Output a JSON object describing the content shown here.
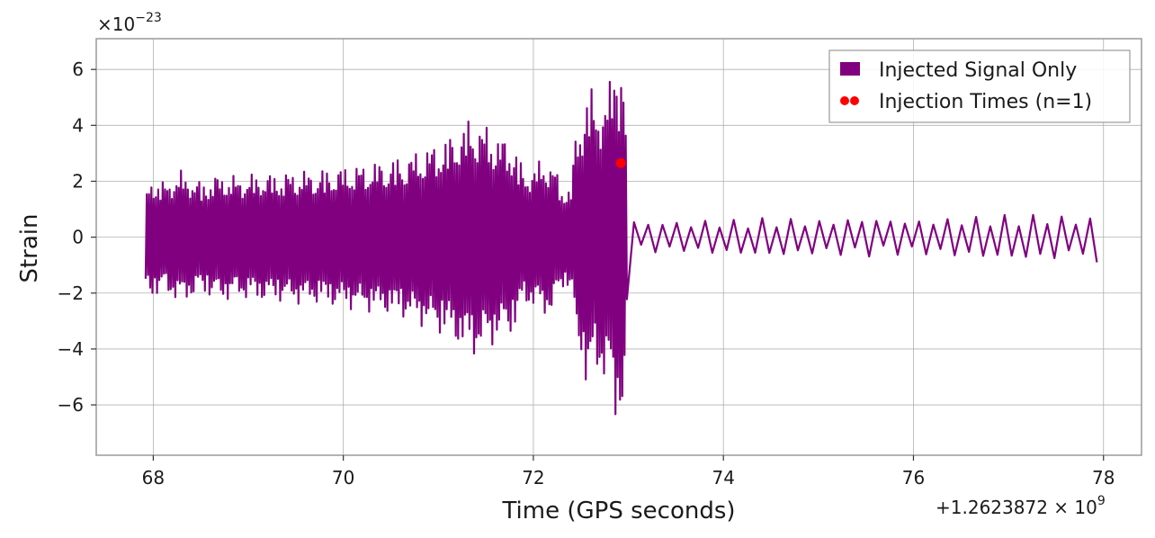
{
  "chart_data": {
    "type": "line",
    "title": "",
    "xlabel": "Time (GPS seconds)",
    "ylabel": "Strain",
    "x_offset_label": "+1.2623872 × 10",
    "x_offset_exponent": "9",
    "y_scale_label": "×10",
    "y_scale_exponent": "−23",
    "xlim": [
      67.4,
      78.4
    ],
    "ylim": [
      -7.8,
      7.1
    ],
    "x_ticks": [
      68,
      70,
      72,
      74,
      76,
      78
    ],
    "x_tick_labels": [
      "68",
      "70",
      "72",
      "74",
      "76",
      "78"
    ],
    "y_ticks": [
      6,
      4,
      2,
      0,
      -2,
      -4,
      -6
    ],
    "y_tick_labels": [
      "6",
      "4",
      "2",
      "0",
      "−2",
      "−4",
      "−6"
    ],
    "grid": true,
    "legend_position": "top-right",
    "series": [
      {
        "name": "Injected Signal Only",
        "kind": "line",
        "color": "#800080",
        "x": [
          67.92,
          67.93,
          67.95,
          68.1,
          68.3,
          68.5,
          68.7,
          68.9,
          69.1,
          69.3,
          69.5,
          69.7,
          69.9,
          70.1,
          70.3,
          70.5,
          70.7,
          70.9,
          71.1,
          71.3,
          71.4,
          71.6,
          71.8,
          71.9,
          72.0,
          72.1,
          72.2,
          72.3,
          72.4,
          72.45,
          72.5,
          72.55,
          72.6,
          72.65,
          72.7,
          72.75,
          72.8,
          72.85,
          72.88,
          72.9,
          72.92,
          72.94,
          72.96,
          72.98,
          73.0,
          73.2,
          73.4,
          73.6,
          73.8,
          74.0,
          74.5,
          75.0,
          75.5,
          76.0,
          76.5,
          77.0,
          77.5,
          77.8,
          77.9,
          77.93
        ],
        "y": [
          -2.4,
          1.6,
          -2.2,
          2.0,
          -2.4,
          2.0,
          -2.3,
          2.2,
          -2.3,
          2.3,
          -2.4,
          2.4,
          -2.5,
          2.6,
          -2.7,
          2.8,
          -3.0,
          3.3,
          -3.6,
          4.2,
          -4.3,
          3.8,
          -3.4,
          2.4,
          -2.6,
          2.8,
          -2.8,
          1.8,
          -1.9,
          4.0,
          -4.2,
          5.4,
          -5.5,
          4.9,
          -5.0,
          5.3,
          -5.5,
          6.3,
          -7.1,
          6.0,
          -6.8,
          6.4,
          -6.5,
          2.6,
          0.7,
          -0.5,
          0.6,
          -0.5,
          0.6,
          -0.6,
          0.7,
          -0.6,
          0.7,
          -0.6,
          0.7,
          -0.8,
          0.8,
          -0.6,
          0.8,
          -0.9
        ]
      },
      {
        "name": "Injection Times (n=1)",
        "kind": "scatter",
        "color": "#ff0000",
        "x": [
          72.92
        ],
        "y": [
          2.65
        ]
      }
    ]
  }
}
